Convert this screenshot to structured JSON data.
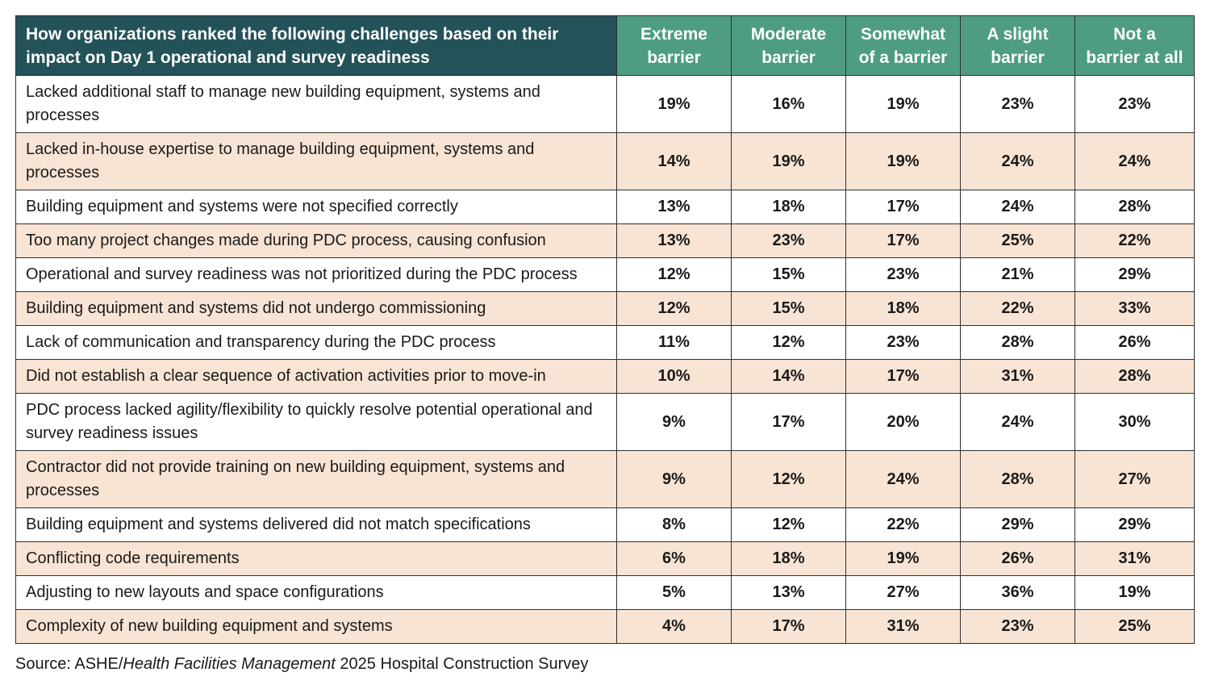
{
  "chart_data": {
    "type": "table",
    "row_header": "How organizations ranked the following challenges based on their impact on Day 1 operational and survey readiness",
    "columns": [
      "Extreme barrier",
      "Moderate barrier",
      "Somewhat of a barrier",
      "A slight barrier",
      "Not a barrier at all"
    ],
    "rows": [
      {
        "label": "Lacked additional staff to manage new building equipment, systems and processes",
        "values": [
          "19%",
          "16%",
          "19%",
          "23%",
          "23%"
        ]
      },
      {
        "label": "Lacked in-house expertise to manage building equipment, systems and processes",
        "values": [
          "14%",
          "19%",
          "19%",
          "24%",
          "24%"
        ]
      },
      {
        "label": "Building equipment and systems were not specified correctly",
        "values": [
          "13%",
          "18%",
          "17%",
          "24%",
          "28%"
        ]
      },
      {
        "label": "Too many project changes made during PDC process, causing confusion",
        "values": [
          "13%",
          "23%",
          "17%",
          "25%",
          "22%"
        ]
      },
      {
        "label": "Operational and survey readiness was not prioritized during the PDC process",
        "values": [
          "12%",
          "15%",
          "23%",
          "21%",
          "29%"
        ]
      },
      {
        "label": "Building equipment and systems did not undergo commissioning",
        "values": [
          "12%",
          "15%",
          "18%",
          "22%",
          "33%"
        ]
      },
      {
        "label": "Lack of communication and transparency during the PDC process",
        "values": [
          "11%",
          "12%",
          "23%",
          "28%",
          "26%"
        ]
      },
      {
        "label": "Did not establish a clear sequence of activation activities prior to move-in",
        "values": [
          "10%",
          "14%",
          "17%",
          "31%",
          "28%"
        ]
      },
      {
        "label": "PDC process lacked agility/flexibility to quickly resolve potential operational and survey readiness issues",
        "values": [
          "9%",
          "17%",
          "20%",
          "24%",
          "30%"
        ]
      },
      {
        "label": "Contractor did not provide training on new building equipment, systems and processes",
        "values": [
          "9%",
          "12%",
          "24%",
          "28%",
          "27%"
        ]
      },
      {
        "label": "Building equipment and systems delivered did not match specifications",
        "values": [
          "8%",
          "12%",
          "22%",
          "29%",
          "29%"
        ]
      },
      {
        "label": "Conflicting code requirements",
        "values": [
          "6%",
          "18%",
          "19%",
          "26%",
          "31%"
        ]
      },
      {
        "label": "Adjusting to new layouts and space configurations",
        "values": [
          "5%",
          "13%",
          "27%",
          "36%",
          "19%"
        ]
      },
      {
        "label": "Complexity of new building equipment and systems",
        "values": [
          "4%",
          "17%",
          "31%",
          "23%",
          "25%"
        ]
      }
    ]
  },
  "source": {
    "prefix": "Source: ASHE/",
    "italic": "Health Facilities Management",
    "suffix": " 2025 Hospital Construction Survey"
  },
  "colors": {
    "header_dark": "#245259",
    "header_green": "#4e9d82",
    "row_white": "#ffffff",
    "row_peach": "#f8e4d4",
    "border": "#2f2f2f"
  }
}
